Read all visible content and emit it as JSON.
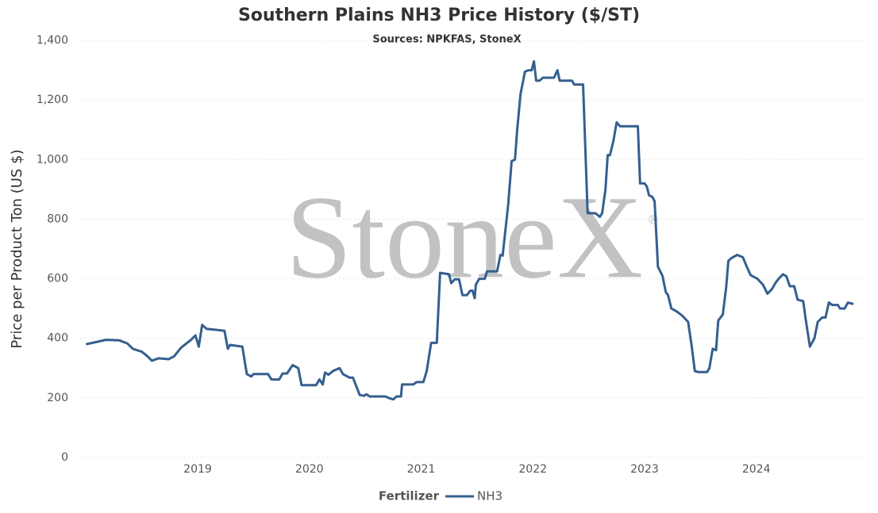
{
  "chart_data": {
    "type": "line",
    "title": "Southern Plains NH3 Price History ($/ST)",
    "subtitle": "Sources: NPKFAS, StoneX",
    "watermark": "StoneX",
    "watermark_mark": "®",
    "y_label": "Price per Product Ton (US $)",
    "legend_title": "Fertilizer",
    "legend": "bottom",
    "grid": true,
    "xlim": [
      2017.92,
      2024.99
    ],
    "xticks": [
      2019,
      2020,
      2021,
      2022,
      2023,
      2024
    ],
    "ylim": [
      0,
      1400
    ],
    "yticks": [
      0,
      200,
      400,
      600,
      800,
      {
        "value": 1000,
        "label": "1,000"
      },
      {
        "value": 1200,
        "label": "1,200"
      },
      {
        "value": 1400,
        "label": "1,400"
      }
    ],
    "x": [
      2018.0,
      2018.12,
      2018.18,
      2018.3,
      2018.37,
      2018.42,
      2018.5,
      2018.55,
      2018.59,
      2018.65,
      2018.74,
      2018.79,
      2018.85,
      2018.94,
      2018.98,
      2019.01,
      2019.04,
      2019.08,
      2019.18,
      2019.24,
      2019.27,
      2019.29,
      2019.4,
      2019.44,
      2019.48,
      2019.5,
      2019.63,
      2019.66,
      2019.73,
      2019.76,
      2019.8,
      2019.85,
      2019.9,
      2019.93,
      2020.06,
      2020.09,
      2020.12,
      2020.14,
      2020.17,
      2020.21,
      2020.27,
      2020.3,
      2020.36,
      2020.39,
      2020.45,
      2020.49,
      2020.51,
      2020.54,
      2020.68,
      2020.71,
      2020.75,
      2020.78,
      2020.82,
      2020.83,
      2020.93,
      2020.96,
      2021.02,
      2021.05,
      2021.09,
      2021.14,
      2021.17,
      2021.25,
      2021.27,
      2021.3,
      2021.34,
      2021.37,
      2021.41,
      2021.44,
      2021.46,
      2021.48,
      2021.49,
      2021.52,
      2021.57,
      2021.59,
      2021.68,
      2021.71,
      2021.73,
      2021.78,
      2021.81,
      2021.84,
      2021.86,
      2021.89,
      2021.93,
      2021.96,
      2021.99,
      2022.01,
      2022.03,
      2022.06,
      2022.09,
      2022.19,
      2022.22,
      2022.24,
      2022.35,
      2022.37,
      2022.45,
      2022.49,
      2022.56,
      2022.6,
      2022.62,
      2022.65,
      2022.67,
      2022.69,
      2022.72,
      2022.75,
      2022.78,
      2022.94,
      2022.96,
      2023.0,
      2023.02,
      2023.04,
      2023.07,
      2023.09,
      2023.12,
      2023.16,
      2023.19,
      2023.21,
      2023.24,
      2023.29,
      2023.34,
      2023.39,
      2023.42,
      2023.45,
      2023.48,
      2023.56,
      2023.58,
      2023.61,
      2023.64,
      2023.66,
      2023.7,
      2023.73,
      2023.75,
      2023.78,
      2023.83,
      2023.88,
      2023.91,
      2023.95,
      2024.01,
      2024.06,
      2024.1,
      2024.14,
      2024.17,
      2024.2,
      2024.24,
      2024.27,
      2024.3,
      2024.34,
      2024.37,
      2024.42,
      2024.44,
      2024.48,
      2024.52,
      2024.55,
      2024.59,
      2024.62,
      2024.65,
      2024.68,
      2024.73,
      2024.75,
      2024.79,
      2024.82,
      2024.87
    ],
    "series": [
      {
        "name": "NH3",
        "color": "#355f8f",
        "values": [
          380,
          390,
          395,
          393,
          383,
          365,
          355,
          340,
          325,
          333,
          330,
          340,
          368,
          395,
          410,
          372,
          445,
          432,
          428,
          425,
          365,
          378,
          372,
          280,
          272,
          280,
          280,
          262,
          262,
          282,
          282,
          310,
          300,
          243,
          243,
          262,
          245,
          285,
          278,
          290,
          300,
          280,
          268,
          268,
          210,
          207,
          212,
          205,
          205,
          200,
          195,
          205,
          205,
          245,
          245,
          253,
          253,
          290,
          385,
          385,
          620,
          615,
          585,
          598,
          598,
          545,
          545,
          560,
          560,
          535,
          580,
          600,
          600,
          625,
          625,
          680,
          678,
          850,
          995,
          1000,
          1100,
          1220,
          1295,
          1300,
          1300,
          1330,
          1265,
          1265,
          1275,
          1275,
          1300,
          1265,
          1265,
          1252,
          1252,
          820,
          820,
          808,
          820,
          900,
          1015,
          1015,
          1060,
          1125,
          1112,
          1112,
          920,
          920,
          910,
          880,
          875,
          860,
          640,
          610,
          555,
          545,
          500,
          490,
          475,
          455,
          380,
          290,
          287,
          287,
          300,
          365,
          360,
          460,
          480,
          570,
          660,
          670,
          680,
          672,
          645,
          612,
          600,
          580,
          550,
          565,
          585,
          600,
          615,
          608,
          575,
          575,
          530,
          525,
          470,
          372,
          400,
          455,
          470,
          470,
          520,
          512,
          512,
          500,
          500,
          520,
          515
        ]
      }
    ]
  }
}
